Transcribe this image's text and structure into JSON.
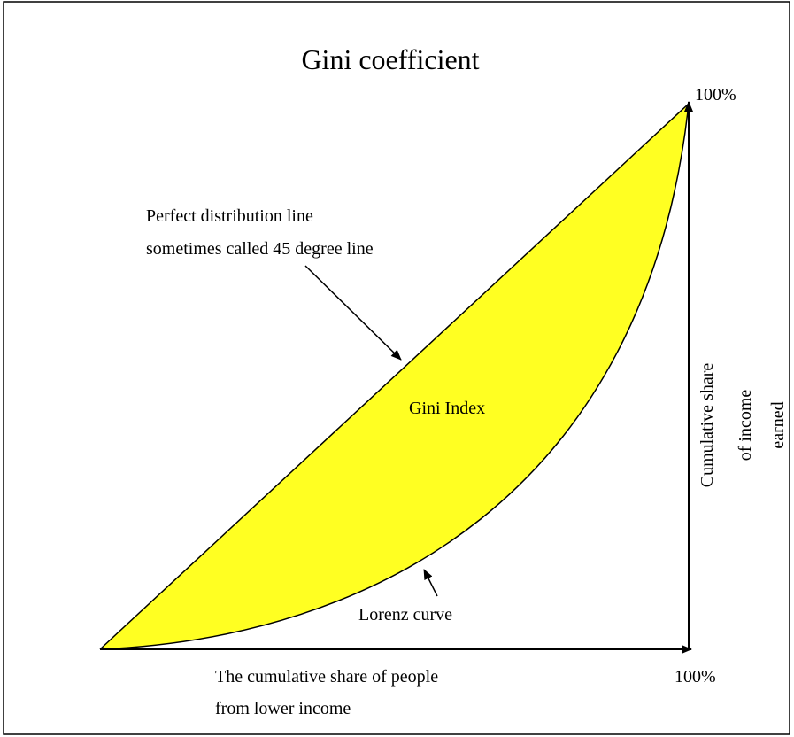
{
  "title": "Gini coefficient",
  "y_axis_end_label": "100%",
  "x_axis_end_label": "100%",
  "perfect_line_label": [
    "Perfect distribution line",
    "sometimes called 45 degree line"
  ],
  "area_label": "Gini Index",
  "lorenz_label": "Lorenz curve",
  "x_axis_label": [
    "The cumulative share of people",
    "from lower income"
  ],
  "y_axis_label": [
    "Cumulative share",
    "of income",
    "earned"
  ]
}
